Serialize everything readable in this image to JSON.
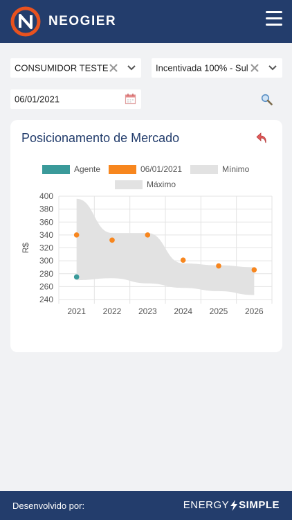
{
  "app": {
    "brand": "NEOGIER"
  },
  "filters": {
    "consumer": "CONSUMIDOR TESTE",
    "energy_type": "Incentivada 100% - Sul",
    "date": "06/01/2021"
  },
  "card": {
    "title": "Posicionamento de Mercado"
  },
  "legend": {
    "agent": "Agente",
    "date": "06/01/2021",
    "min": "Mínimo",
    "max": "Máximo"
  },
  "chart_data": {
    "type": "line",
    "ylabel": "R$",
    "xlabel": "",
    "categories": [
      "2021",
      "2022",
      "2023",
      "2024",
      "2025",
      "2026"
    ],
    "yticks": [
      240,
      260,
      280,
      300,
      320,
      340,
      360,
      380,
      400
    ],
    "ylim": [
      240,
      400
    ],
    "grid": true,
    "legend_position": "top",
    "series": [
      {
        "name": "Agente",
        "type": "scatter",
        "color": "#3a9a9a",
        "values": [
          275,
          null,
          null,
          null,
          null,
          null
        ]
      },
      {
        "name": "06/01/2021",
        "type": "scatter",
        "color": "#f7861e",
        "values": [
          340,
          332,
          340,
          301,
          292,
          286
        ]
      },
      {
        "name": "Mínimo",
        "type": "area",
        "color": "#e2e2e2",
        "values": [
          270,
          273,
          265,
          258,
          253,
          247
        ]
      },
      {
        "name": "Máximo",
        "type": "area",
        "color": "#e2e2e2",
        "values": [
          396,
          343,
          343,
          296,
          293,
          290
        ]
      }
    ]
  },
  "footer": {
    "dev_label": "Desenvolvido por:",
    "energy": "ENERGY",
    "simple": "SIMPLE"
  },
  "colors": {
    "header_bg": "#233d6c",
    "accent_orange": "#f7861e",
    "agent_teal": "#3a9a9a",
    "band_gray": "#e2e2e2"
  },
  "icons": {
    "logo": "neogier-logo-icon",
    "menu": "hamburger-menu-icon",
    "clear": "close-icon",
    "dropdown": "chevron-down-icon",
    "calendar": "calendar-icon",
    "search": "search-icon",
    "undo": "undo-icon",
    "bolt": "lightning-bolt-icon"
  }
}
